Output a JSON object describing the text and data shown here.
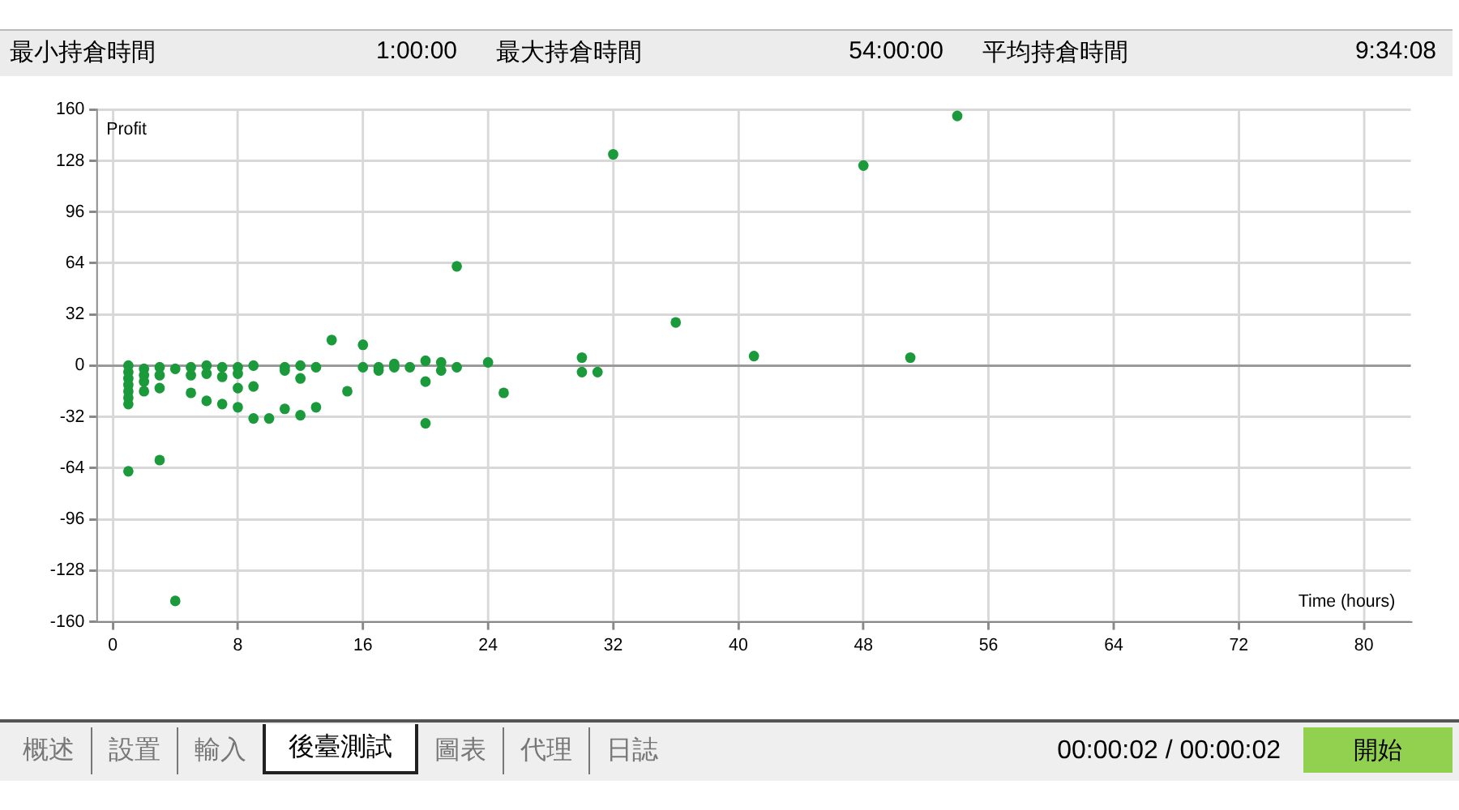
{
  "chart_data": {
    "type": "scatter",
    "xlabel": "Time (hours)",
    "ylabel": "Profit",
    "annotations": [
      "最小持倉時間",
      "1:00:00",
      "最大持倉時間",
      "54:00:00",
      "平均持倉時間",
      "9:34:08",
      "概述",
      "設置",
      "輸入",
      "後臺測試",
      "圖表",
      "代理",
      "日誌",
      "00:00:02 / 00:00:02",
      "開始"
    ],
    "series": [
      {
        "color": "#1a9a3a",
        "x": [
          1,
          1,
          1,
          1,
          1,
          1,
          1,
          1,
          2,
          2,
          2,
          2,
          3,
          3,
          3,
          3,
          4,
          4,
          5,
          5,
          5,
          6,
          6,
          6,
          7,
          7,
          7,
          8,
          8,
          8,
          8,
          9,
          9,
          9,
          10,
          11,
          11,
          11,
          12,
          12,
          12,
          13,
          13,
          14,
          15,
          16,
          16,
          17,
          17,
          18,
          18,
          19,
          20,
          20,
          20,
          21,
          21,
          22,
          22,
          24,
          25,
          30,
          30,
          31,
          32,
          36,
          41,
          48,
          51,
          54
        ],
        "values": [
          0,
          -4,
          -8,
          -12,
          -16,
          -20,
          -24,
          -66,
          -2,
          -6,
          -10,
          -16,
          -1,
          -6,
          -14,
          -59,
          -2,
          -147,
          -1,
          -6,
          -17,
          0,
          -5,
          -22,
          -1,
          -7,
          -24,
          -1,
          -5,
          -14,
          -26,
          0,
          -13,
          -33,
          -33,
          -1,
          -3,
          -27,
          0,
          -8,
          -31,
          -1,
          -26,
          16,
          -16,
          13,
          -1,
          -1,
          -3,
          1,
          -1,
          -1,
          3,
          -10,
          -36,
          2,
          -3,
          62,
          -1,
          2,
          -17,
          5,
          -4,
          -4,
          132,
          27,
          6,
          125,
          5,
          156
        ]
      }
    ],
    "xlim": [
      -1,
      83
    ],
    "ylim": [
      -160,
      160
    ],
    "xticks": [
      0,
      8,
      16,
      24,
      32,
      40,
      48,
      56,
      64,
      72,
      80
    ],
    "yticks": [
      -160,
      -128,
      -96,
      -64,
      -32,
      0,
      32,
      64,
      96,
      128,
      160
    ],
    "grid": true,
    "marker": "circle",
    "legend": false
  }
}
